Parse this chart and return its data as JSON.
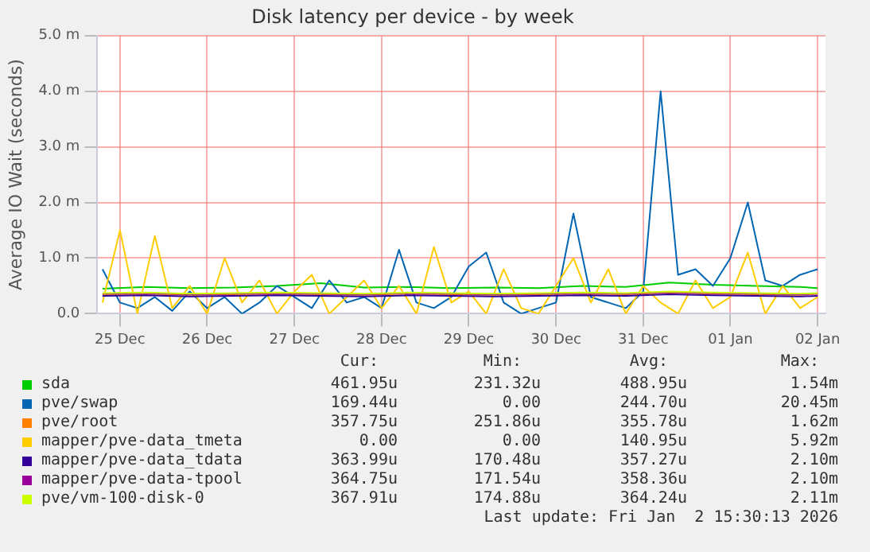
{
  "chart_data": {
    "type": "line",
    "title": "Disk latency per device - by week",
    "ylabel": "Average IO Wait (seconds)",
    "xlim": [
      "2025-12-24T17:45",
      "2026-01-02T02:10"
    ],
    "xticks": [
      {
        "value": "2025-12-25",
        "label": "25 Dec"
      },
      {
        "value": "2025-12-26",
        "label": "26 Dec"
      },
      {
        "value": "2025-12-27",
        "label": "27 Dec"
      },
      {
        "value": "2025-12-28",
        "label": "28 Dec"
      },
      {
        "value": "2025-12-29",
        "label": "29 Dec"
      },
      {
        "value": "2025-12-30",
        "label": "30 Dec"
      },
      {
        "value": "2025-12-31",
        "label": "31 Dec"
      },
      {
        "value": "2026-01-01",
        "label": "01 Jan"
      },
      {
        "value": "2026-01-02",
        "label": "02 Jan"
      }
    ],
    "ylim": [
      0,
      5
    ],
    "yticks": [
      {
        "value": 0,
        "label": "0.0"
      },
      {
        "value": 1,
        "label": "1.0 m"
      },
      {
        "value": 2,
        "label": "2.0 m"
      },
      {
        "value": 3,
        "label": "3.0 m"
      },
      {
        "value": 4,
        "label": "4.0 m"
      },
      {
        "value": 5,
        "label": "5.0 m"
      }
    ],
    "grid": true,
    "legend": "bottom",
    "marker": "none",
    "line_style": "solid",
    "x": [
      "2025-12-24T19:12",
      "2025-12-25T07:12",
      "2025-12-25T19:12",
      "2025-12-26T07:12",
      "2025-12-26T19:12",
      "2025-12-27T07:12",
      "2025-12-27T19:12",
      "2025-12-28T07:12",
      "2025-12-28T19:12",
      "2025-12-29T07:12",
      "2025-12-29T19:12",
      "2025-12-30T07:12",
      "2025-12-30T19:12",
      "2025-12-31T07:12",
      "2025-12-31T19:12",
      "2026-01-01T07:12",
      "2026-01-01T19:12",
      "2026-01-02T00:00"
    ],
    "series": [
      {
        "name": "sda",
        "color": "#00cc00",
        "values": [
          0.45,
          0.48,
          0.46,
          0.47,
          0.5,
          0.55,
          0.47,
          0.48,
          0.46,
          0.47,
          0.46,
          0.5,
          0.48,
          0.56,
          0.52,
          0.5,
          0.48,
          0.46
        ]
      },
      {
        "name": "pve/swap",
        "color": "#0066b3",
        "x": [
          "2025-12-24T19:12",
          "2025-12-25T00:00",
          "2025-12-25T04:48",
          "2025-12-25T09:36",
          "2025-12-25T14:24",
          "2025-12-25T19:12",
          "2025-12-26T00:00",
          "2025-12-26T04:48",
          "2025-12-26T09:36",
          "2025-12-26T14:24",
          "2025-12-26T19:12",
          "2025-12-27T00:00",
          "2025-12-27T04:48",
          "2025-12-27T09:36",
          "2025-12-27T14:24",
          "2025-12-27T19:12",
          "2025-12-28T00:00",
          "2025-12-28T04:48",
          "2025-12-28T09:36",
          "2025-12-28T14:24",
          "2025-12-28T19:12",
          "2025-12-29T00:00",
          "2025-12-29T04:48",
          "2025-12-29T09:36",
          "2025-12-29T14:24",
          "2025-12-29T19:12",
          "2025-12-30T00:00",
          "2025-12-30T04:48",
          "2025-12-30T09:36",
          "2025-12-30T14:24",
          "2025-12-30T19:12",
          "2025-12-31T00:00",
          "2025-12-31T04:48",
          "2025-12-31T09:36",
          "2025-12-31T14:24",
          "2025-12-31T19:12",
          "2026-01-01T00:00",
          "2026-01-01T04:48",
          "2026-01-01T09:36",
          "2026-01-01T14:24",
          "2026-01-01T19:12",
          "2026-01-02T00:00"
        ],
        "values": [
          0.8,
          0.2,
          0.1,
          0.3,
          0.05,
          0.4,
          0.1,
          0.3,
          0,
          0.2,
          0.5,
          0.3,
          0.1,
          0.6,
          0.2,
          0.3,
          0.1,
          1.15,
          0.2,
          0.1,
          0.3,
          0.85,
          1.1,
          0.2,
          0,
          0.1,
          0.2,
          1.8,
          0.3,
          0.2,
          0.1,
          0.4,
          4.0,
          0.7,
          0.8,
          0.5,
          1.0,
          2.0,
          0.6,
          0.5,
          0.7,
          0.8
        ]
      },
      {
        "name": "pve/root",
        "color": "#ff8000",
        "values": [
          0.35,
          0.36,
          0.34,
          0.35,
          0.36,
          0.35,
          0.34,
          0.36,
          0.35,
          0.34,
          0.35,
          0.36,
          0.35,
          0.38,
          0.36,
          0.35,
          0.34,
          0.36
        ]
      },
      {
        "name": "mapper/pve-data_tmeta",
        "color": "#ffcc00",
        "x": [
          "2025-12-24T19:12",
          "2025-12-25T00:00",
          "2025-12-25T04:48",
          "2025-12-25T09:36",
          "2025-12-25T14:24",
          "2025-12-25T19:12",
          "2025-12-26T00:00",
          "2025-12-26T04:48",
          "2025-12-26T09:36",
          "2025-12-26T14:24",
          "2025-12-26T19:12",
          "2025-12-27T00:00",
          "2025-12-27T04:48",
          "2025-12-27T09:36",
          "2025-12-27T14:24",
          "2025-12-27T19:12",
          "2025-12-28T00:00",
          "2025-12-28T04:48",
          "2025-12-28T09:36",
          "2025-12-28T14:24",
          "2025-12-28T19:12",
          "2025-12-29T00:00",
          "2025-12-29T04:48",
          "2025-12-29T09:36",
          "2025-12-29T14:24",
          "2025-12-29T19:12",
          "2025-12-30T00:00",
          "2025-12-30T04:48",
          "2025-12-30T09:36",
          "2025-12-30T14:24",
          "2025-12-30T19:12",
          "2025-12-31T00:00",
          "2025-12-31T04:48",
          "2025-12-31T09:36",
          "2025-12-31T14:24",
          "2025-12-31T19:12",
          "2026-01-01T00:00",
          "2026-01-01T04:48",
          "2026-01-01T09:36",
          "2026-01-01T14:24",
          "2026-01-01T19:12",
          "2026-01-02T00:00"
        ],
        "values": [
          0.2,
          1.5,
          0,
          1.4,
          0.1,
          0.5,
          0,
          1.0,
          0.2,
          0.6,
          0,
          0.4,
          0.7,
          0,
          0.3,
          0.6,
          0.1,
          0.5,
          0,
          1.2,
          0.2,
          0.4,
          0,
          0.8,
          0.1,
          0,
          0.5,
          1.0,
          0.2,
          0.8,
          0,
          0.5,
          0.2,
          0,
          0.6,
          0.1,
          0.3,
          1.1,
          0,
          0.5,
          0.1,
          0.3
        ]
      },
      {
        "name": "mapper/pve-data_tdata",
        "color": "#330099",
        "values": [
          0.32,
          0.33,
          0.31,
          0.32,
          0.33,
          0.32,
          0.31,
          0.33,
          0.32,
          0.31,
          0.32,
          0.33,
          0.32,
          0.35,
          0.33,
          0.32,
          0.31,
          0.32
        ]
      },
      {
        "name": "mapper/pve-data-tpool",
        "color": "#990099",
        "values": [
          0.36,
          0.37,
          0.35,
          0.36,
          0.37,
          0.36,
          0.35,
          0.37,
          0.36,
          0.35,
          0.36,
          0.37,
          0.36,
          0.39,
          0.37,
          0.36,
          0.35,
          0.36
        ]
      },
      {
        "name": "pve/vm-100-disk-0",
        "color": "#ccff00",
        "values": [
          0.37,
          0.38,
          0.36,
          0.37,
          0.38,
          0.37,
          0.36,
          0.38,
          0.37,
          0.36,
          0.37,
          0.38,
          0.37,
          0.4,
          0.38,
          0.37,
          0.36,
          0.37
        ]
      }
    ],
    "annotations": [
      "Cur:",
      "Min:",
      "Avg:",
      "Max:",
      "461.95u",
      "231.32u",
      "488.95u",
      "1.54m",
      "169.44u",
      "0.00",
      "244.70u",
      "20.45m",
      "357.75u",
      "251.86u",
      "355.78u",
      "1.62m",
      "0.00",
      "0.00",
      "140.95u",
      "5.92m",
      "363.99u",
      "170.48u",
      "357.27u",
      "2.10m",
      "364.75u",
      "171.54u",
      "358.36u",
      "2.10m",
      "367.91u",
      "174.88u",
      "364.24u",
      "2.11m",
      "Last update: Fri Jan  2 15:30:13 2026"
    ]
  }
}
